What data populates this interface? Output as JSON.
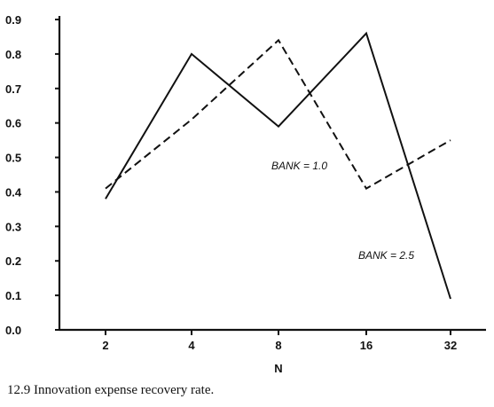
{
  "caption": "12.9  Innovation expense recovery rate.",
  "chart_data": {
    "type": "line",
    "title": "",
    "xlabel": "N",
    "ylabel": "",
    "x": [
      "2",
      "4",
      "8",
      "16",
      "32"
    ],
    "ylim": [
      0.0,
      0.9
    ],
    "yticks": [
      "0.0",
      "0.1",
      "0.2",
      "0.3",
      "0.4",
      "0.5",
      "0.6",
      "0.7",
      "0.8",
      "0.9"
    ],
    "grid": false,
    "series": [
      {
        "name": "BANK = 2.5",
        "line_style": "solid",
        "values": [
          0.38,
          0.8,
          0.59,
          0.86,
          0.09
        ]
      },
      {
        "name": "BANK = 1.0",
        "line_style": "dashed",
        "values": [
          0.41,
          0.61,
          0.84,
          0.41,
          0.55
        ]
      }
    ]
  },
  "colors": {
    "line": "#111111",
    "axis": "#111111"
  }
}
